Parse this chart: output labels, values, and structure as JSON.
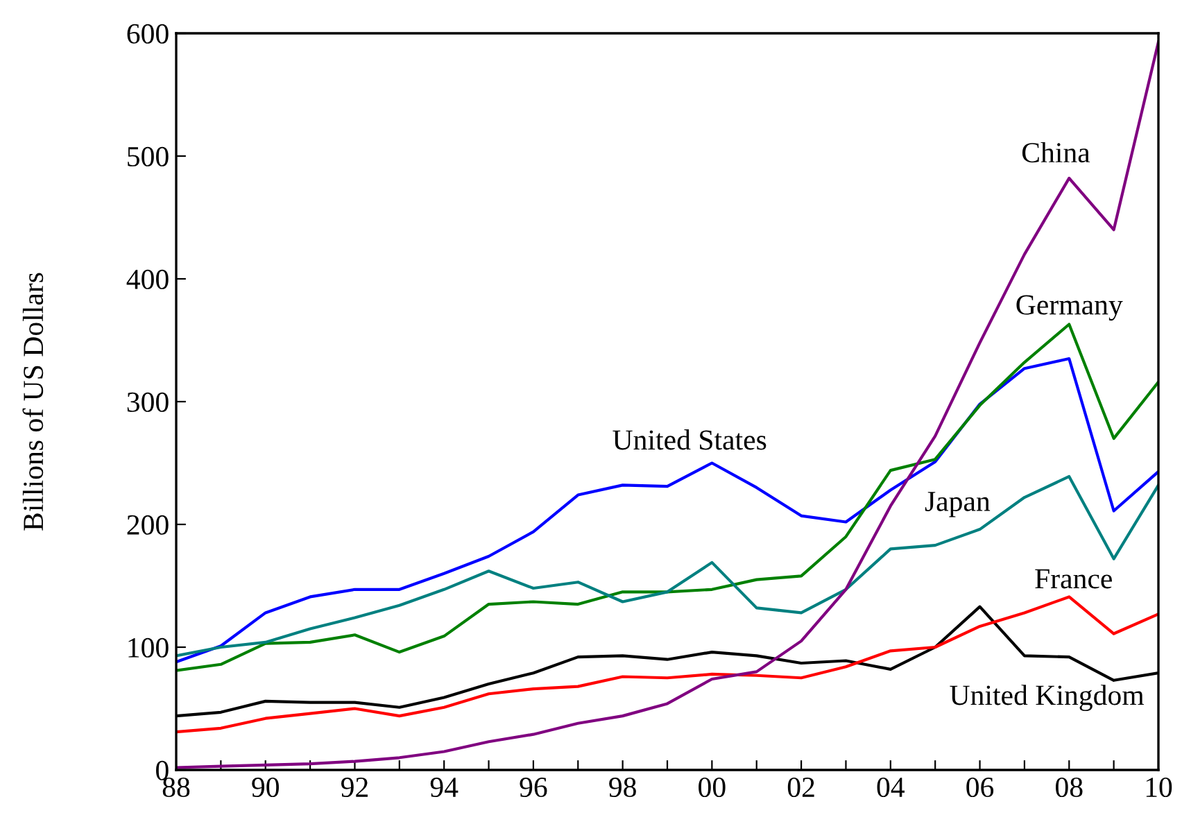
{
  "chart_data": {
    "type": "line",
    "ylabel": "Billions of US Dollars",
    "x": [
      1988,
      1989,
      1990,
      1991,
      1992,
      1993,
      1994,
      1995,
      1996,
      1997,
      1998,
      1999,
      2000,
      2001,
      2002,
      2003,
      2004,
      2005,
      2006,
      2007,
      2008,
      2009,
      2010
    ],
    "series": [
      {
        "name": "United States",
        "color": "#0000ff",
        "values": [
          88,
          101,
          128,
          141,
          147,
          147,
          160,
          174,
          194,
          224,
          232,
          231,
          250,
          230,
          207,
          202,
          228,
          251,
          298,
          327,
          335,
          211,
          243
        ]
      },
      {
        "name": "Germany",
        "color": "#008000",
        "values": [
          81,
          86,
          103,
          104,
          110,
          96,
          109,
          135,
          137,
          135,
          145,
          145,
          147,
          155,
          158,
          190,
          244,
          253,
          297,
          332,
          363,
          270,
          316
        ]
      },
      {
        "name": "Japan",
        "color": "#008080",
        "values": [
          93,
          100,
          104,
          115,
          124,
          134,
          147,
          162,
          148,
          153,
          137,
          145,
          169,
          132,
          128,
          147,
          180,
          183,
          196,
          222,
          239,
          172,
          232
        ]
      },
      {
        "name": "United Kingdom",
        "color": "#000000",
        "values": [
          44,
          47,
          56,
          55,
          55,
          51,
          59,
          70,
          79,
          92,
          93,
          90,
          96,
          93,
          87,
          89,
          82,
          100,
          133,
          93,
          92,
          73,
          79
        ]
      },
      {
        "name": "France",
        "color": "#ff0000",
        "values": [
          31,
          34,
          42,
          46,
          50,
          44,
          51,
          62,
          66,
          68,
          76,
          75,
          78,
          77,
          75,
          84,
          97,
          100,
          117,
          128,
          141,
          111,
          127
        ]
      },
      {
        "name": "China",
        "color": "#800080",
        "values": [
          2,
          3,
          4,
          5,
          7,
          10,
          15,
          23,
          29,
          38,
          44,
          54,
          74,
          80,
          105,
          147,
          215,
          272,
          348,
          420,
          482,
          440,
          593
        ]
      }
    ],
    "xlim": [
      1988,
      2010
    ],
    "ylim": [
      0,
      600
    ],
    "xticks": [
      {
        "value": 1988,
        "label": "88"
      },
      {
        "value": 1989,
        "label": null
      },
      {
        "value": 1990,
        "label": "90"
      },
      {
        "value": 1991,
        "label": null
      },
      {
        "value": 1992,
        "label": "92"
      },
      {
        "value": 1993,
        "label": null
      },
      {
        "value": 1994,
        "label": "94"
      },
      {
        "value": 1995,
        "label": null
      },
      {
        "value": 1996,
        "label": "96"
      },
      {
        "value": 1997,
        "label": null
      },
      {
        "value": 1998,
        "label": "98"
      },
      {
        "value": 1999,
        "label": null
      },
      {
        "value": 2000,
        "label": "00"
      },
      {
        "value": 2001,
        "label": null
      },
      {
        "value": 2002,
        "label": "02"
      },
      {
        "value": 2003,
        "label": null
      },
      {
        "value": 2004,
        "label": "04"
      },
      {
        "value": 2005,
        "label": null
      },
      {
        "value": 2006,
        "label": "06"
      },
      {
        "value": 2007,
        "label": null
      },
      {
        "value": 2008,
        "label": "08"
      },
      {
        "value": 2009,
        "label": null
      },
      {
        "value": 2010,
        "label": "10"
      }
    ],
    "yticks": [
      0,
      100,
      200,
      300,
      400,
      500,
      600
    ],
    "grid": false,
    "legend": false,
    "marker": "none",
    "line_style": "solid"
  }
}
